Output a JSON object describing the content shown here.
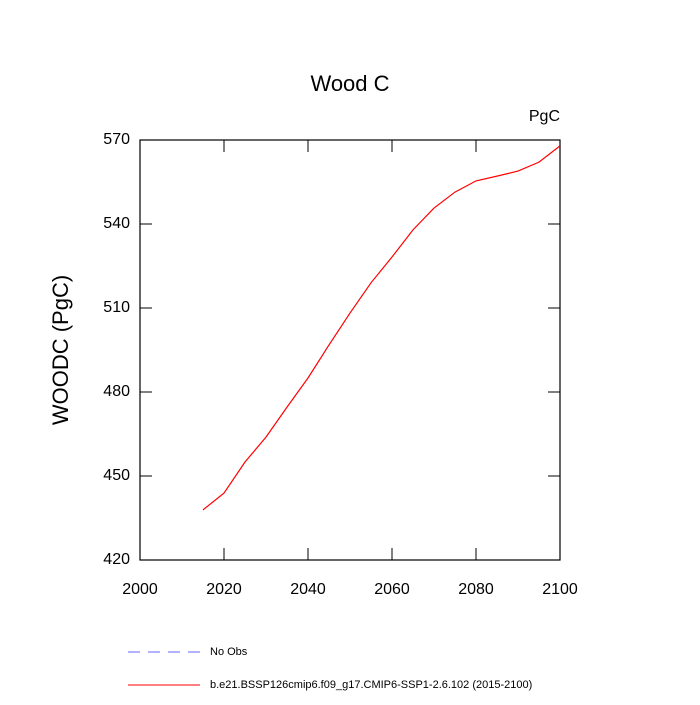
{
  "chart_data": {
    "type": "line",
    "title": "Wood C",
    "units_label": "PgC",
    "y_label": "WOODC  (PgC)",
    "x": [
      2015,
      2020,
      2025,
      2030,
      2035,
      2040,
      2045,
      2050,
      2055,
      2060,
      2065,
      2070,
      2075,
      2080,
      2085,
      2090,
      2095,
      2100
    ],
    "series": [
      {
        "name": "No Obs",
        "color": "#6666ff",
        "dashed": true,
        "values": [
          null,
          null,
          null,
          null,
          null,
          null,
          null,
          null,
          null,
          null,
          null,
          null,
          null,
          null,
          null,
          null,
          null,
          null
        ]
      },
      {
        "name": "b.e21.BSSP126cmip6.f09_g17.CMIP6-SSP1-2.6.102 (2015-2100)",
        "color": "#ff0000",
        "dashed": false,
        "values": [
          437.9,
          443.9,
          455,
          463.9,
          474.6,
          485,
          496.8,
          508.2,
          519,
          528.2,
          537.9,
          545.7,
          551.4,
          555.4,
          557.1,
          558.9,
          562.1,
          567.9
        ]
      }
    ],
    "xlim": [
      2000,
      2100
    ],
    "xticks": [
      2000,
      2020,
      2040,
      2060,
      2080,
      2100
    ],
    "ylim": [
      420,
      570
    ],
    "yticks": [
      420,
      450,
      480,
      510,
      540,
      570
    ]
  }
}
